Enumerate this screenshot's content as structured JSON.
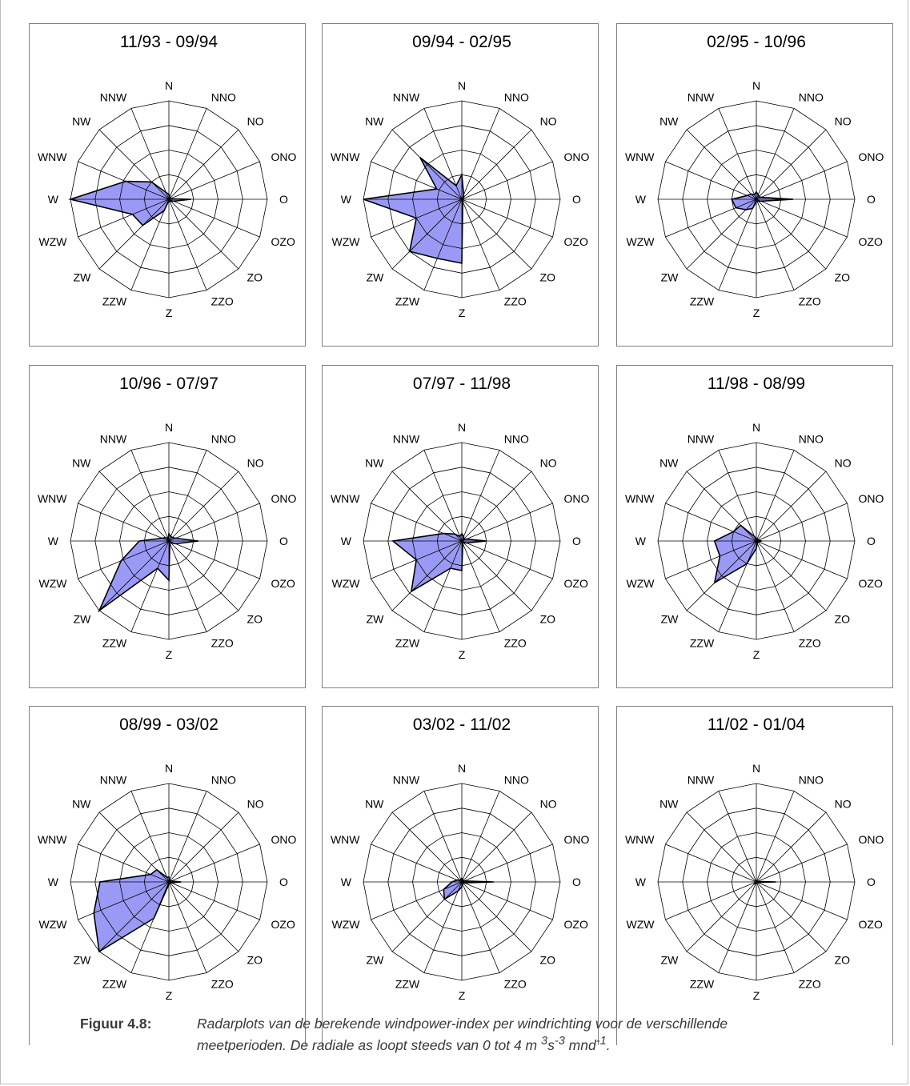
{
  "chart_data": [
    {
      "type": "radar",
      "title": "11/93  -  09/94",
      "rlim": [
        0,
        4
      ],
      "directions": [
        "N",
        "NNO",
        "NO",
        "ONO",
        "O",
        "OZO",
        "ZO",
        "ZZO",
        "Z",
        "ZZW",
        "ZW",
        "WZW",
        "W",
        "WNW",
        "NW",
        "NNW"
      ],
      "values": [
        0.2,
        0.1,
        0.05,
        0.05,
        0.9,
        0.2,
        0.1,
        0.1,
        0.05,
        0.5,
        1.5,
        1.6,
        4.0,
        1.9,
        1.0,
        0.3
      ]
    },
    {
      "type": "radar",
      "title": "09/94  -  02/95",
      "rlim": [
        0,
        4
      ],
      "directions": [
        "N",
        "NNO",
        "NO",
        "ONO",
        "O",
        "OZO",
        "ZO",
        "ZZO",
        "Z",
        "ZZW",
        "ZW",
        "WZW",
        "W",
        "WNW",
        "NW",
        "NNW"
      ],
      "values": [
        1.0,
        0.2,
        0.1,
        0.05,
        0.05,
        0.05,
        0.05,
        0.1,
        2.6,
        2.6,
        3.0,
        2.0,
        4.0,
        1.1,
        2.4,
        0.6
      ]
    },
    {
      "type": "radar",
      "title": "02/95  -  10/96",
      "rlim": [
        0,
        4
      ],
      "directions": [
        "N",
        "NNO",
        "NO",
        "ONO",
        "O",
        "OZO",
        "ZO",
        "ZZO",
        "Z",
        "ZZW",
        "ZW",
        "WZW",
        "W",
        "WNW",
        "NW",
        "NNW"
      ],
      "values": [
        0.3,
        0.2,
        0.15,
        0.2,
        1.5,
        0.2,
        0.1,
        0.1,
        0.1,
        0.4,
        0.6,
        0.9,
        1.0,
        0.4,
        0.3,
        0.2
      ]
    },
    {
      "type": "radar",
      "title": "10/96  -  07/97",
      "rlim": [
        0,
        4
      ],
      "directions": [
        "N",
        "NNO",
        "NO",
        "ONO",
        "O",
        "OZO",
        "ZO",
        "ZZO",
        "Z",
        "ZZW",
        "ZW",
        "WZW",
        "W",
        "WNW",
        "NW",
        "NNW"
      ],
      "values": [
        0.3,
        0.2,
        0.2,
        0.3,
        1.2,
        0.3,
        0.1,
        0.1,
        1.6,
        1.2,
        4.0,
        2.1,
        1.2,
        0.3,
        0.2,
        0.1
      ]
    },
    {
      "type": "radar",
      "title": "07/97  -  11/98",
      "rlim": [
        0,
        4
      ],
      "directions": [
        "N",
        "NNO",
        "NO",
        "ONO",
        "O",
        "OZO",
        "ZO",
        "ZZO",
        "Z",
        "ZZW",
        "ZW",
        "WZW",
        "W",
        "WNW",
        "NW",
        "NNW"
      ],
      "values": [
        0.3,
        0.2,
        0.1,
        0.2,
        1.0,
        0.2,
        0.1,
        0.1,
        1.2,
        1.2,
        2.9,
        2.0,
        2.8,
        0.8,
        0.4,
        0.2
      ]
    },
    {
      "type": "radar",
      "title": "11/98  -  08/99",
      "rlim": [
        0,
        4
      ],
      "directions": [
        "N",
        "NNO",
        "NO",
        "ONO",
        "O",
        "OZO",
        "ZO",
        "ZZO",
        "Z",
        "ZZW",
        "ZW",
        "WZW",
        "W",
        "WNW",
        "NW",
        "NNW"
      ],
      "values": [
        0.1,
        0.1,
        0.05,
        0.1,
        0.2,
        0.1,
        0.05,
        0.1,
        0.3,
        1.0,
        2.4,
        1.6,
        1.7,
        1.0,
        0.9,
        0.2
      ]
    },
    {
      "type": "radar",
      "title": "08/99  -  03/02",
      "rlim": [
        0,
        4
      ],
      "directions": [
        "N",
        "NNO",
        "NO",
        "ONO",
        "O",
        "OZO",
        "ZO",
        "ZZO",
        "Z",
        "ZZW",
        "ZW",
        "WZW",
        "W",
        "WNW",
        "NW",
        "NNW"
      ],
      "values": [
        0.2,
        0.1,
        0.05,
        0.1,
        0.5,
        0.1,
        0.05,
        0.05,
        0.1,
        1.6,
        4.0,
        3.3,
        2.8,
        0.8,
        0.7,
        0.2
      ]
    },
    {
      "type": "radar",
      "title": "03/02  -  11/02",
      "rlim": [
        0,
        4
      ],
      "directions": [
        "N",
        "NNO",
        "NO",
        "ONO",
        "O",
        "OZO",
        "ZO",
        "ZZO",
        "Z",
        "ZZW",
        "ZW",
        "WZW",
        "W",
        "WNW",
        "NW",
        "NNW"
      ],
      "values": [
        0.15,
        0.1,
        0.05,
        0.1,
        1.3,
        0.1,
        0.05,
        0.05,
        0.2,
        0.4,
        1.0,
        0.8,
        0.4,
        0.2,
        0.1,
        0.1
      ]
    },
    {
      "type": "radar",
      "title": "11/02  -  01/04",
      "rlim": [
        0,
        4
      ],
      "directions": [
        "N",
        "NNO",
        "NO",
        "ONO",
        "O",
        "OZO",
        "ZO",
        "ZZO",
        "Z",
        "ZZW",
        "ZW",
        "WZW",
        "W",
        "WNW",
        "NW",
        "NNW"
      ],
      "values": [
        0.05,
        0.05,
        0.02,
        0.05,
        0.8,
        0.05,
        0.02,
        0.02,
        0.05,
        0.05,
        0.1,
        0.05,
        0.05,
        0.02,
        0.02,
        0.02
      ]
    }
  ],
  "colors": {
    "fill": "#9a9af6",
    "outline": "#000000",
    "grid": "#000000",
    "frame": "#808080"
  },
  "caption": {
    "label": "Figuur 4.8:",
    "text_line1": "Radarplots van de berekende windpower-index per windrichting voor de verschillende",
    "text_line2_start": "meetperioden. De radiale as loopt steeds van 0 tot 4 m ",
    "unit_exp1": "3",
    "unit_s": "s",
    "unit_exp2": "-3",
    "unit_mnd": " mnd",
    "unit_exp3": "-1",
    "text_end": "."
  }
}
